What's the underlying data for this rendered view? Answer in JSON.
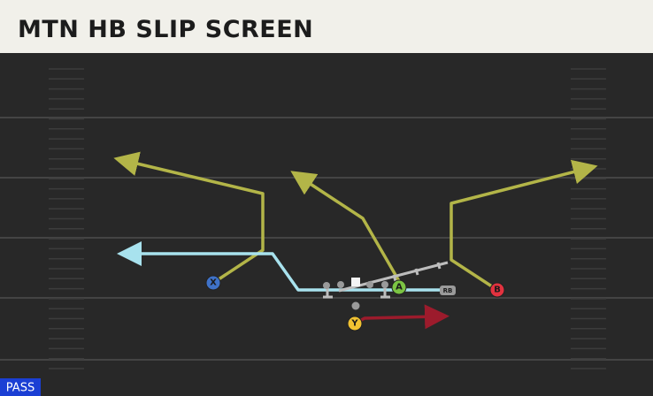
{
  "header": {
    "title": "MTN HB SLIP SCREEN"
  },
  "players": [
    {
      "label": "X"
    },
    {
      "label": "A"
    },
    {
      "label": "B"
    },
    {
      "label": "Y"
    },
    {
      "label": "RB"
    }
  ],
  "badge": {
    "label": "PASS"
  }
}
